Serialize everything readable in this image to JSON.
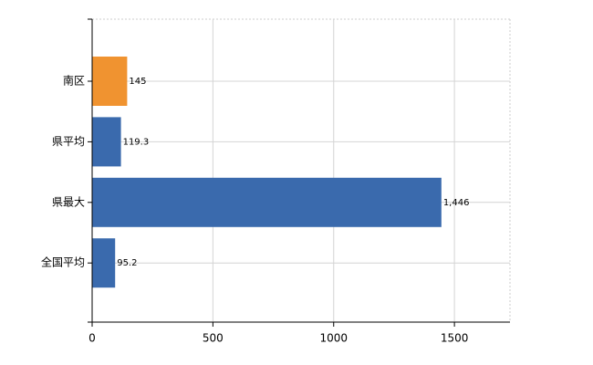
{
  "chart_data": {
    "type": "bar",
    "orientation": "horizontal",
    "categories": [
      "南区",
      "県平均",
      "県最大",
      "全国平均"
    ],
    "values": [
      145,
      119.3,
      1446,
      95.2
    ],
    "value_labels": [
      "145",
      "119.3",
      "1,446",
      "95.2"
    ],
    "colors": [
      "#f09330",
      "#3a6aad",
      "#3a6aad",
      "#3a6aad"
    ],
    "xlim": [
      0,
      1730
    ],
    "xticks": [
      0,
      500,
      1000,
      1500
    ],
    "grid": true
  }
}
